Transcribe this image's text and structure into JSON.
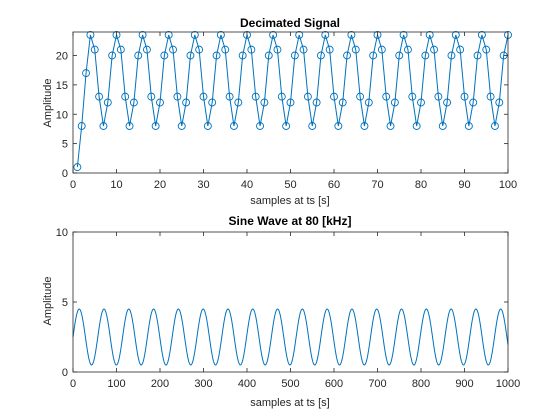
{
  "chart_data": [
    {
      "type": "line",
      "title": "Decimated Signal",
      "xlabel": "samples at ts [s]",
      "ylabel": "Amplitude",
      "xlim": [
        0,
        100
      ],
      "ylim": [
        0,
        24
      ],
      "xticks": [
        "0",
        "10",
        "20",
        "30",
        "40",
        "50",
        "60",
        "70",
        "80",
        "90",
        "100"
      ],
      "yticks": [
        "0",
        "5",
        "10",
        "15",
        "20"
      ],
      "grid": false,
      "marker": "circle",
      "color": "#0072bd",
      "series": [
        {
          "x": [
            1,
            2,
            3,
            4,
            5,
            6,
            7,
            8,
            9,
            10,
            11,
            12,
            13,
            14,
            15,
            16,
            17,
            18,
            19,
            20,
            21,
            22,
            23,
            24,
            25,
            26,
            27,
            28,
            29,
            30,
            31,
            32,
            33,
            34,
            35,
            36,
            37,
            38,
            39,
            40,
            41,
            42,
            43,
            44,
            45,
            46,
            47,
            48,
            49,
            50,
            51,
            52,
            53,
            54,
            55,
            56,
            57,
            58,
            59,
            60,
            61,
            62,
            63,
            64,
            65,
            66,
            67,
            68,
            69,
            70,
            71,
            72,
            73,
            74,
            75,
            76,
            77,
            78,
            79,
            80,
            81,
            82,
            83,
            84,
            85,
            86,
            87,
            88,
            89,
            90,
            91,
            92,
            93,
            94,
            95,
            96,
            97,
            98,
            99,
            100
          ],
          "values": [
            1,
            8,
            17,
            23.5,
            21,
            13,
            8,
            12,
            20,
            23.5,
            21,
            13,
            8,
            12,
            20,
            23.5,
            21,
            13,
            8,
            12,
            20,
            23.5,
            21,
            13,
            8,
            12,
            20,
            23.5,
            21,
            13,
            8,
            12,
            20,
            23.5,
            21,
            13,
            8,
            12,
            20,
            23.5,
            21,
            13,
            8,
            12,
            20,
            23.5,
            21,
            13,
            8,
            12,
            20,
            23.5,
            21,
            13,
            8,
            12,
            20,
            23.5,
            21,
            13,
            8,
            12,
            20,
            23.5,
            21,
            13,
            8,
            12,
            20,
            23.5,
            21,
            13,
            8,
            12,
            20,
            23.5,
            21,
            13,
            8,
            12,
            20,
            23.5,
            21,
            13,
            8,
            12,
            20,
            23.5,
            21,
            13,
            8,
            12,
            20,
            23.5,
            21,
            13,
            8,
            12,
            20,
            23.5
          ]
        }
      ]
    },
    {
      "type": "line",
      "title": "Sine Wave at 80 [kHz]",
      "xlabel": "samples at ts [s]",
      "ylabel": "Amplitude",
      "xlim": [
        0,
        1000
      ],
      "ylim": [
        0,
        10
      ],
      "xticks": [
        "0",
        "100",
        "200",
        "300",
        "400",
        "500",
        "600",
        "700",
        "800",
        "900",
        "1000"
      ],
      "yticks": [
        "0",
        "5",
        "10"
      ],
      "grid": false,
      "color": "#0072bd",
      "series": [
        {
          "function": "sine",
          "offset": 2.5,
          "amplitude": 2.0,
          "period": 57,
          "phase_deg": 0,
          "samples": 1000
        }
      ]
    }
  ]
}
